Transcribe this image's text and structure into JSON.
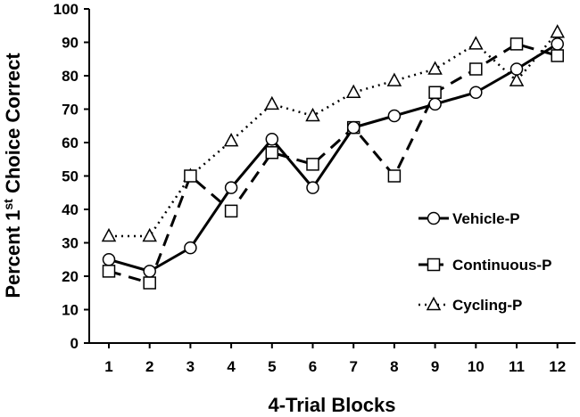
{
  "chart_data": {
    "type": "line",
    "title": "",
    "xlabel": "4-Trial Blocks",
    "ylabel_main": "Percent 1",
    "ylabel_sup": "st",
    "ylabel_rest": " Choice Correct",
    "ylim": [
      0,
      100
    ],
    "yticks": [
      "0",
      "10",
      "20",
      "30",
      "40",
      "50",
      "60",
      "70",
      "80",
      "90",
      "100"
    ],
    "x": [
      1,
      2,
      3,
      4,
      5,
      6,
      7,
      8,
      9,
      10,
      11,
      12
    ],
    "xticks": [
      "1",
      "2",
      "3",
      "4",
      "5",
      "6",
      "7",
      "8",
      "9",
      "10",
      "11",
      "12"
    ],
    "grid": false,
    "legend_position": "right",
    "series": [
      {
        "name": "Vehicle-P",
        "marker": "circle",
        "line": "solid",
        "values": [
          25,
          21.5,
          28.5,
          46.5,
          61,
          46.5,
          64.5,
          68,
          71.5,
          75,
          82,
          89.5
        ]
      },
      {
        "name": "Continuous-P",
        "marker": "square",
        "line": "dashed",
        "values": [
          21.5,
          18,
          50,
          39.5,
          57,
          53.5,
          64.5,
          50,
          75,
          82,
          89.5,
          86
        ]
      },
      {
        "name": "Cycling-P",
        "marker": "triangle",
        "line": "dotted",
        "values": [
          32,
          32,
          50,
          60.5,
          71.5,
          68,
          75,
          78.5,
          82,
          89.5,
          78.5,
          93
        ]
      }
    ]
  }
}
